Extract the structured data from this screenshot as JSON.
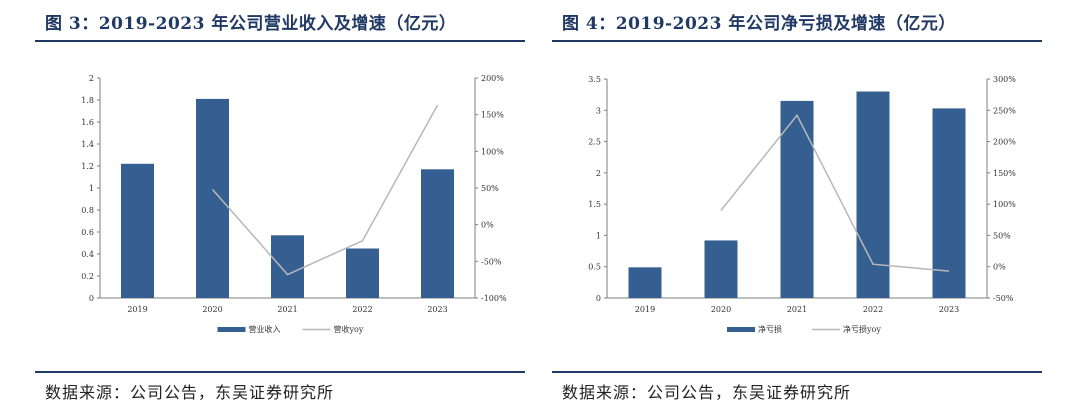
{
  "figures": [
    {
      "title": "图 3：2019-2023 年公司营业收入及增速（亿元）",
      "source": "数据来源：公司公告，东吴证券研究所"
    },
    {
      "title": "图 4：2019-2023 年公司净亏损及增速（亿元）",
      "source": "数据来源：公司公告，东吴证券研究所"
    }
  ],
  "colors": {
    "bar": "#355f91",
    "line": "#b7b7b7",
    "title": "#1f3864"
  },
  "chart_data": [
    {
      "type": "bar",
      "categories": [
        "2019",
        "2020",
        "2021",
        "2022",
        "2023"
      ],
      "series": [
        {
          "name": "营业收入",
          "type": "bar",
          "axis": "left",
          "values": [
            1.22,
            1.81,
            0.57,
            0.45,
            1.17
          ]
        },
        {
          "name": "营收yoy",
          "type": "line",
          "axis": "right",
          "values": [
            null,
            48,
            -68,
            -22,
            163
          ]
        }
      ],
      "ylim_left": [
        0,
        2
      ],
      "left_ticks": [
        "0",
        "0.2",
        "0.4",
        "0.6",
        "0.8",
        "1",
        "1.2",
        "1.4",
        "1.6",
        "1.8",
        "2"
      ],
      "ylim_right": [
        -100,
        200
      ],
      "right_ticks": [
        "-100%",
        "-50%",
        "0%",
        "50%",
        "100%",
        "150%",
        "200%"
      ],
      "legend_position": "bottom"
    },
    {
      "type": "bar",
      "categories": [
        "2019",
        "2020",
        "2021",
        "2022",
        "2023"
      ],
      "series": [
        {
          "name": "净亏损",
          "type": "bar",
          "axis": "left",
          "values": [
            0.49,
            0.92,
            3.15,
            3.3,
            3.03
          ]
        },
        {
          "name": "净亏损yoy",
          "type": "line",
          "axis": "right",
          "values": [
            null,
            90,
            242,
            4,
            -7
          ]
        }
      ],
      "ylim_left": [
        0,
        3.5
      ],
      "left_ticks": [
        "0",
        "0.5",
        "1",
        "1.5",
        "2",
        "2.5",
        "3",
        "3.5"
      ],
      "ylim_right": [
        -50,
        300
      ],
      "right_ticks": [
        "-50%",
        "0%",
        "50%",
        "100%",
        "150%",
        "200%",
        "250%",
        "300%"
      ],
      "legend_position": "bottom"
    }
  ]
}
